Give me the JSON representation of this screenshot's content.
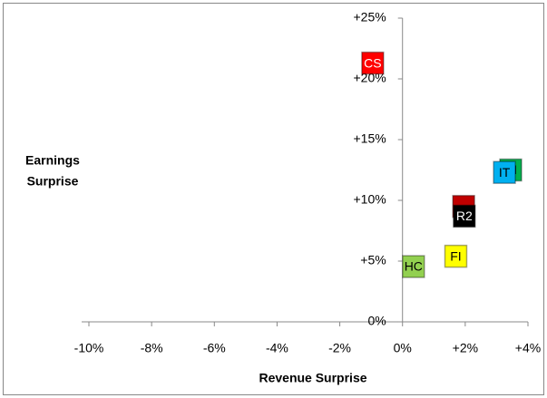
{
  "chart_data": {
    "type": "scatter",
    "x_label": "Revenue Surprise",
    "y_label": [
      "Earnings",
      "Surprise"
    ],
    "xlim": [
      -10,
      4
    ],
    "ylim": [
      0,
      25
    ],
    "xticks": [
      {
        "value": -10,
        "label": "-10%"
      },
      {
        "value": -8,
        "label": "-8%"
      },
      {
        "value": -6,
        "label": "-6%"
      },
      {
        "value": -4,
        "label": "-4%"
      },
      {
        "value": -2,
        "label": "-2%"
      },
      {
        "value": 0,
        "label": "0%"
      },
      {
        "value": 2,
        "label": "+2%"
      },
      {
        "value": 4,
        "label": "+4%"
      }
    ],
    "yticks": [
      {
        "value": 0,
        "label": "0%"
      },
      {
        "value": 5,
        "label": "+5%"
      },
      {
        "value": 10,
        "label": "+10%"
      },
      {
        "value": 15,
        "label": "+15%"
      },
      {
        "value": 20,
        "label": "+20%"
      },
      {
        "value": 25,
        "label": "+25%"
      }
    ],
    "points": [
      {
        "label": "HC",
        "x": 0.35,
        "y": 4.55,
        "color": "#92d050",
        "text_color": "#000000"
      },
      {
        "label": "FI",
        "x": 1.7,
        "y": 5.4,
        "color": "#ffff00",
        "text_color": "#000000"
      },
      {
        "label": null,
        "x": 1.95,
        "y": 9.5,
        "color": "#c00000",
        "text_color": "#ffffff"
      },
      {
        "label": "R2",
        "x": 1.97,
        "y": 8.7,
        "color": "#000000",
        "text_color": "#ffffff"
      },
      {
        "label": "IN",
        "x": 3.45,
        "y": 12.5,
        "color": "#00b050",
        "text_color": "#000000"
      },
      {
        "label": "IT",
        "x": 3.25,
        "y": 12.3,
        "color": "#00b0f0",
        "text_color": "#000000"
      },
      {
        "label": "CS",
        "x": -0.95,
        "y": 21.3,
        "color": "#ff0000",
        "text_color": "#ffffff"
      }
    ]
  }
}
